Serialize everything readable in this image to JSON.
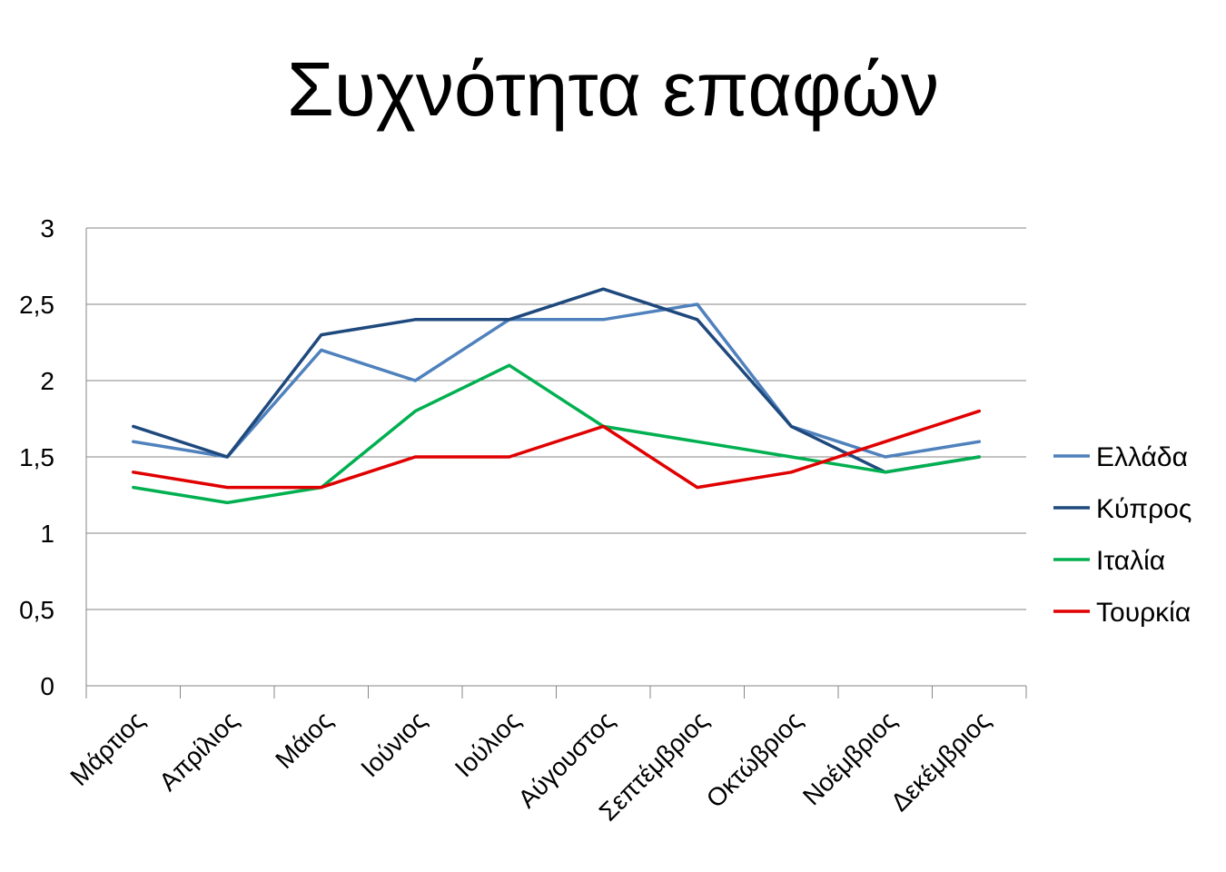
{
  "chart_data": {
    "type": "line",
    "title": "Συχνότητα επαφών",
    "categories": [
      "Μάρτιος",
      "Απρίλιος",
      "Μάιος",
      "Ιούνιος",
      "Ιούλιος",
      "Αύγουστος",
      "Σεπτέμβριος",
      "Οκτώβριος",
      "Νοέμβριος",
      "Δεκέμβριος"
    ],
    "y_ticks": [
      "0",
      "0,5",
      "1",
      "1,5",
      "2",
      "2,5",
      "3"
    ],
    "ylim": [
      0,
      3
    ],
    "grid": true,
    "legend_position": "right",
    "series": [
      {
        "name": "Ελλάδα",
        "color": "#4F81BD",
        "values": [
          1.6,
          1.5,
          2.2,
          2.0,
          2.4,
          2.4,
          2.5,
          1.7,
          1.5,
          1.6
        ]
      },
      {
        "name": "Κύπρος",
        "color": "#1F497D",
        "values": [
          1.7,
          1.5,
          2.3,
          2.4,
          2.4,
          2.6,
          2.4,
          1.7,
          1.4,
          1.5
        ]
      },
      {
        "name": "Ιταλία",
        "color": "#00B050",
        "values": [
          1.3,
          1.2,
          1.3,
          1.8,
          2.1,
          1.7,
          1.6,
          1.5,
          1.4,
          1.5
        ]
      },
      {
        "name": "Τουρκία",
        "color": "#E00000",
        "values": [
          1.4,
          1.3,
          1.3,
          1.5,
          1.5,
          1.7,
          1.3,
          1.4,
          1.6,
          1.8
        ]
      }
    ]
  }
}
